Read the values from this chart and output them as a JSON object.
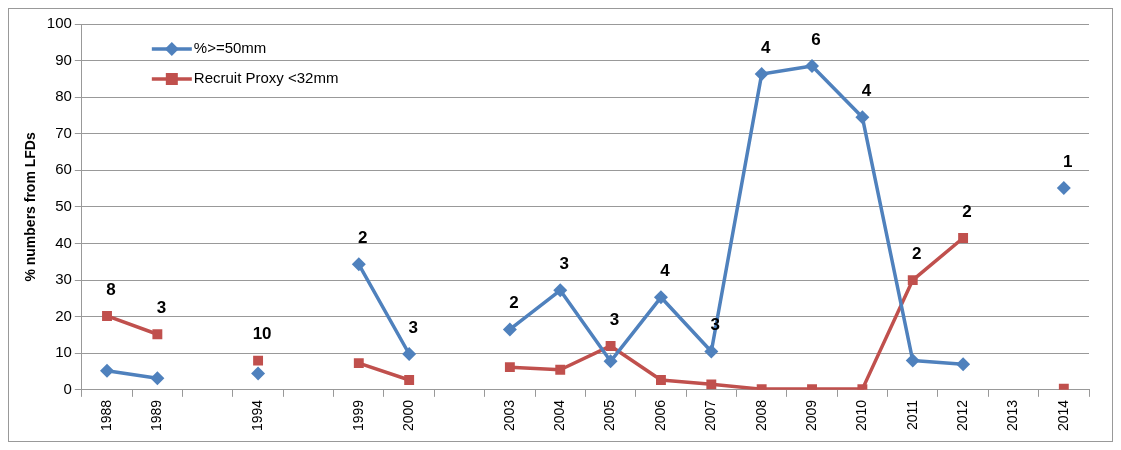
{
  "chart_data": {
    "type": "line",
    "ylabel": "% numbers from LFDs",
    "categories": [
      "1988",
      "1989",
      null,
      "1994",
      null,
      "1999",
      "2000",
      null,
      "2003",
      "2004",
      "2005",
      "2006",
      "2007",
      "2008",
      "2009",
      "2010",
      "2011",
      "2012",
      "2013",
      "2014"
    ],
    "series": [
      {
        "name": "%>=50mm",
        "color": "#4f81bd",
        "marker": "diamond",
        "values": [
          5.2,
          3.2,
          null,
          4.5,
          null,
          34.3,
          9.8,
          null,
          16.5,
          27.2,
          7.8,
          25.3,
          10.5,
          86.3,
          88.5,
          74.5,
          8,
          7,
          null,
          55.2
        ]
      },
      {
        "name": "Recruit Proxy <32mm",
        "color": "#c0504d",
        "marker": "square",
        "values": [
          20.2,
          15.2,
          null,
          8,
          null,
          7.3,
          2.7,
          null,
          6.2,
          5.5,
          12,
          2.7,
          1.5,
          0.2,
          0.2,
          0.2,
          30,
          41.5,
          null,
          0.3
        ]
      }
    ],
    "ylim": [
      0,
      100
    ],
    "yticks": [
      0,
      10,
      20,
      30,
      40,
      50,
      60,
      70,
      80,
      90,
      100
    ],
    "grid": "y",
    "legend": "top left",
    "line_style": "solid",
    "annotations": [
      {
        "text": "8",
        "x": "1988",
        "y": 20.2
      },
      {
        "text": "3",
        "x": "1989",
        "y": 15.2
      },
      {
        "text": "10",
        "x": "1994",
        "y": 8
      },
      {
        "text": "2",
        "x": "1999",
        "y": 34.3
      },
      {
        "text": "3",
        "x": "2000",
        "y": 9.8
      },
      {
        "text": "2",
        "x": "2003",
        "y": 16.5
      },
      {
        "text": "3",
        "x": "2004",
        "y": 27.2
      },
      {
        "text": "3",
        "x": "2005",
        "y": 12
      },
      {
        "text": "4",
        "x": "2006",
        "y": 25.3
      },
      {
        "text": "3",
        "x": "2007",
        "y": 10.5
      },
      {
        "text": "4",
        "x": "2008",
        "y": 86.3
      },
      {
        "text": "6",
        "x": "2009",
        "y": 88.5
      },
      {
        "text": "4",
        "x": "2010",
        "y": 74.5
      },
      {
        "text": "2",
        "x": "2011",
        "y": 30
      },
      {
        "text": "2",
        "x": "2012",
        "y": 41.5
      },
      {
        "text": "1",
        "x": "2014",
        "y": 55.2
      }
    ]
  }
}
